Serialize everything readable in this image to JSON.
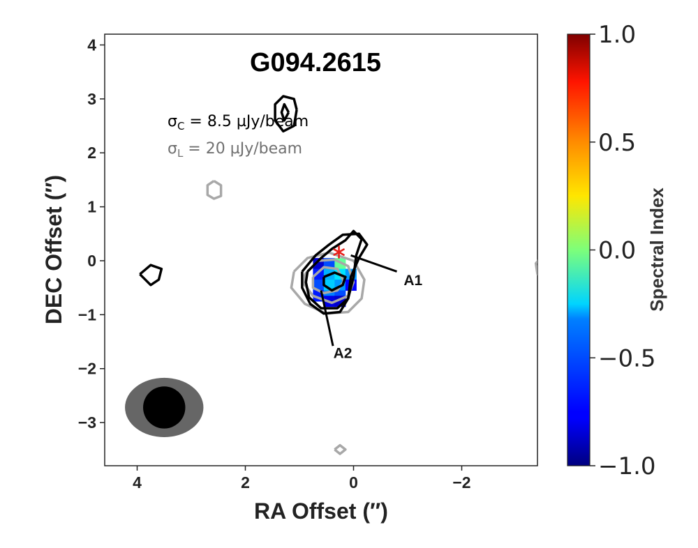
{
  "chart_data": {
    "type": "heatmap",
    "title": "G094.2615",
    "xlabel": "RA Offset (″)",
    "ylabel": "DEC Offset (″)",
    "xlim": [
      4.6,
      -3.4
    ],
    "ylim": [
      -3.8,
      4.2
    ],
    "xticks": [
      4,
      2,
      0,
      -2
    ],
    "xtick_labels": [
      "4",
      "2",
      "0",
      "−2"
    ],
    "yticks": [
      4,
      3,
      2,
      1,
      0,
      -1,
      -2,
      -3
    ],
    "ytick_labels": [
      "4",
      "3",
      "2",
      "1",
      "0",
      "−1",
      "−2",
      "−3"
    ],
    "annotations": {
      "sigma_c": {
        "symbol": "σ",
        "sub": "C",
        "rest": " = 8.5 µJy/beam",
        "color": "#000000"
      },
      "sigma_l": {
        "symbol": "σ",
        "sub": "L",
        "rest": " = 20 µJy/beam",
        "color": "#707070"
      },
      "labels": [
        {
          "text": "A1",
          "x": -1.1,
          "y": -0.35
        },
        {
          "text": "A2",
          "x": 0.2,
          "y": -1.7
        }
      ],
      "star": {
        "x": 0.27,
        "y": 0.16,
        "color": "#e8201a"
      }
    },
    "colorbar": {
      "label": "Spectral Index",
      "range": [
        -1.0,
        1.0
      ],
      "ticks": [
        1.0,
        0.5,
        0.0,
        -0.5,
        -1.0
      ],
      "tick_labels": [
        "1.0",
        "0.5",
        "0.0",
        "−0.5",
        "−1.0"
      ]
    },
    "beams": [
      {
        "name": "L-band beam",
        "x": 3.5,
        "y": -2.72,
        "major": 1.45,
        "minor": 1.1,
        "color": "#666666"
      },
      {
        "name": "C-band beam",
        "x": 3.5,
        "y": -2.72,
        "major": 0.78,
        "minor": 0.78,
        "color": "#000000"
      }
    ],
    "spectral_index_pixels": [
      {
        "x": 0.65,
        "y": -0.05,
        "value": -0.85
      },
      {
        "x": 0.45,
        "y": -0.05,
        "value": -0.6
      },
      {
        "x": 0.25,
        "y": -0.05,
        "value": -0.05
      },
      {
        "x": 0.65,
        "y": -0.25,
        "value": -0.7
      },
      {
        "x": 0.45,
        "y": -0.25,
        "value": -0.4
      },
      {
        "x": 0.25,
        "y": -0.25,
        "value": -0.3
      },
      {
        "x": 0.05,
        "y": -0.25,
        "value": -0.45
      },
      {
        "x": 0.65,
        "y": -0.45,
        "value": -0.6
      },
      {
        "x": 0.45,
        "y": -0.45,
        "value": -0.35
      },
      {
        "x": 0.25,
        "y": -0.45,
        "value": -0.45
      },
      {
        "x": 0.05,
        "y": -0.45,
        "value": -0.75
      },
      {
        "x": 0.65,
        "y": -0.65,
        "value": -0.7
      },
      {
        "x": 0.45,
        "y": -0.65,
        "value": -0.5
      },
      {
        "x": 0.25,
        "y": -0.65,
        "value": -0.6
      },
      {
        "x": 0.45,
        "y": -0.75,
        "value": -0.8
      },
      {
        "x": 0.25,
        "y": -0.75,
        "value": -0.85
      }
    ],
    "contours_c_band": [
      [
        [
          0.95,
          -0.2
        ],
        [
          0.7,
          0.1
        ],
        [
          0.45,
          0.3
        ],
        [
          0.2,
          0.48
        ],
        [
          -0.1,
          0.5
        ],
        [
          -0.25,
          0.3
        ],
        [
          -0.1,
          0.05
        ],
        [
          0.05,
          -0.3
        ],
        [
          0.1,
          -0.7
        ],
        [
          0.25,
          -0.95
        ],
        [
          0.55,
          -0.98
        ],
        [
          0.8,
          -0.8
        ],
        [
          0.95,
          -0.5
        ],
        [
          0.95,
          -0.2
        ]
      ],
      [
        [
          0.85,
          -0.2
        ],
        [
          0.6,
          0.05
        ],
        [
          0.4,
          0.22
        ],
        [
          0.15,
          0.38
        ],
        [
          0.0,
          0.55
        ],
        [
          -0.15,
          0.4
        ],
        [
          -0.05,
          0.1
        ],
        [
          0.0,
          -0.3
        ],
        [
          0.1,
          -0.7
        ],
        [
          0.3,
          -0.88
        ],
        [
          0.6,
          -0.88
        ],
        [
          0.82,
          -0.68
        ],
        [
          0.88,
          -0.4
        ],
        [
          0.85,
          -0.2
        ]
      ],
      [
        [
          0.55,
          -0.3
        ],
        [
          0.35,
          -0.22
        ],
        [
          0.15,
          -0.3
        ],
        [
          0.2,
          -0.45
        ],
        [
          0.4,
          -0.55
        ],
        [
          0.55,
          -0.45
        ],
        [
          0.55,
          -0.3
        ]
      ],
      [
        [
          1.05,
          2.8
        ],
        [
          1.1,
          3.0
        ],
        [
          1.3,
          3.05
        ],
        [
          1.45,
          2.9
        ],
        [
          1.45,
          2.6
        ],
        [
          1.3,
          2.4
        ],
        [
          1.1,
          2.5
        ],
        [
          1.05,
          2.8
        ]
      ],
      [
        [
          1.2,
          2.75
        ],
        [
          1.28,
          2.9
        ],
        [
          1.33,
          2.75
        ],
        [
          1.28,
          2.6
        ],
        [
          1.2,
          2.75
        ]
      ],
      [
        [
          3.95,
          -0.25
        ],
        [
          3.75,
          -0.08
        ],
        [
          3.55,
          -0.15
        ],
        [
          3.6,
          -0.35
        ],
        [
          3.75,
          -0.45
        ],
        [
          3.95,
          -0.25
        ]
      ]
    ],
    "contours_l_band": [
      [
        [
          1.1,
          -0.2
        ],
        [
          0.85,
          0.05
        ],
        [
          0.45,
          0.15
        ],
        [
          0.0,
          0.0
        ],
        [
          -0.2,
          -0.35
        ],
        [
          -0.15,
          -0.7
        ],
        [
          0.1,
          -0.95
        ],
        [
          0.5,
          -0.98
        ],
        [
          0.9,
          -0.8
        ],
        [
          1.15,
          -0.5
        ],
        [
          1.1,
          -0.2
        ]
      ],
      [
        [
          0.9,
          -0.25
        ],
        [
          0.65,
          0.0
        ],
        [
          0.35,
          0.02
        ],
        [
          0.1,
          -0.1
        ],
        [
          0.0,
          -0.4
        ],
        [
          0.1,
          -0.65
        ],
        [
          0.4,
          -0.78
        ],
        [
          0.75,
          -0.65
        ],
        [
          0.9,
          -0.45
        ],
        [
          0.9,
          -0.25
        ]
      ],
      [
        [
          0.75,
          -0.3
        ],
        [
          0.55,
          -0.12
        ],
        [
          0.3,
          -0.15
        ],
        [
          0.18,
          -0.38
        ],
        [
          0.3,
          -0.55
        ],
        [
          0.55,
          -0.6
        ],
        [
          0.75,
          -0.5
        ],
        [
          0.75,
          -0.3
        ]
      ],
      [
        [
          2.58,
          1.48
        ],
        [
          2.45,
          1.4
        ],
        [
          2.45,
          1.2
        ],
        [
          2.58,
          1.15
        ],
        [
          2.7,
          1.22
        ],
        [
          2.7,
          1.4
        ],
        [
          2.58,
          1.48
        ]
      ],
      [
        [
          0.35,
          -3.5
        ],
        [
          0.25,
          -3.42
        ],
        [
          0.15,
          -3.5
        ],
        [
          0.25,
          -3.58
        ],
        [
          0.35,
          -3.5
        ]
      ],
      [
        [
          -3.45,
          0.05
        ],
        [
          -3.37,
          -0.05
        ],
        [
          -3.4,
          -0.25
        ],
        [
          -3.45,
          -0.15
        ]
      ]
    ]
  }
}
